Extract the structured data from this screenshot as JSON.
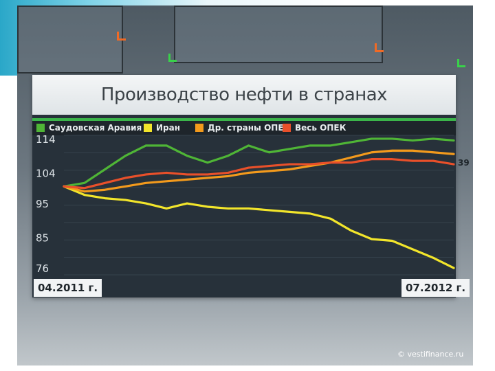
{
  "slide": {
    "copyright": "© vestifinance.ru",
    "side_value": "39"
  },
  "chart_data": {
    "type": "line",
    "title": "Производство нефти в странах",
    "xlabel": "",
    "ylabel": "",
    "x_start_label": "04.2011 г.",
    "x_end_label": "07.2012 г.",
    "yticks": [
      114,
      104,
      95,
      85,
      76
    ],
    "ylim": [
      74,
      115
    ],
    "grid": true,
    "legend_position": "top",
    "x": [
      0,
      1,
      2,
      3,
      4,
      5,
      6,
      7,
      8,
      9,
      10,
      11,
      12,
      13,
      14,
      15,
      16,
      17,
      18,
      19
    ],
    "series": [
      {
        "name": "Саудовская Аравия",
        "color": "#4fb536",
        "values": [
          100,
          101,
          105,
          109,
          112,
          112,
          109,
          107,
          109,
          112,
          110,
          111,
          112,
          112,
          113,
          114,
          114,
          113.5,
          114,
          113.5
        ]
      },
      {
        "name": "Иран",
        "color": "#f2e52b",
        "values": [
          100,
          97.5,
          96.5,
          96,
          95,
          93.5,
          95,
          94,
          93.5,
          93.5,
          93,
          92.5,
          92,
          90.5,
          87,
          84.5,
          84,
          81.5,
          79,
          76
        ]
      },
      {
        "name": "Др. страны ОПЕК",
        "color": "#f39a1c",
        "values": [
          100,
          98.5,
          99,
          100,
          101,
          101.5,
          102,
          102.5,
          103,
          104,
          104.5,
          105,
          106,
          107,
          108.5,
          110,
          110.5,
          110.5,
          110,
          109.5
        ]
      },
      {
        "name": "Весь ОПЕК",
        "color": "#e9502a",
        "values": [
          100,
          99.5,
          101,
          102.5,
          103.5,
          104,
          103.5,
          103.5,
          104,
          105.5,
          106,
          106.5,
          106.5,
          107,
          107,
          108,
          108,
          107.5,
          107.5,
          106.5
        ]
      }
    ]
  }
}
